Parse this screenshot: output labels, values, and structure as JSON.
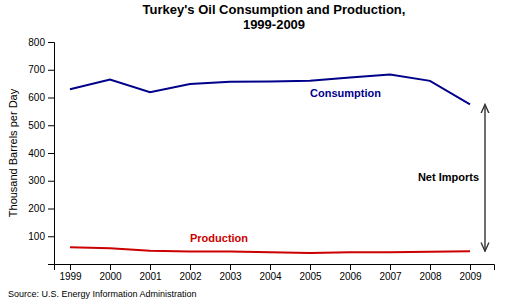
{
  "chart_data": {
    "type": "line",
    "title": "Turkey's Oil Consumption and Production,\n1999-2009",
    "y_label": "Thousand Barrels per Day",
    "x": [
      1999,
      2000,
      2001,
      2002,
      2003,
      2004,
      2005,
      2006,
      2007,
      2008,
      2009
    ],
    "series": [
      {
        "name": "Consumption",
        "color": "#00008B",
        "values": [
          630,
          665,
          619,
          649,
          657,
          658,
          660,
          672,
          683,
          660,
          575
        ]
      },
      {
        "name": "Production",
        "color": "#CC0000",
        "values": [
          60,
          57,
          48,
          45,
          45,
          42,
          40,
          42,
          42,
          44,
          46
        ]
      }
    ],
    "xlim": [
      1998.6,
      2009.6
    ],
    "xticks": [
      1999,
      2000,
      2001,
      2002,
      2003,
      2004,
      2005,
      2006,
      2007,
      2008,
      2009
    ],
    "ylim": [
      0,
      800
    ],
    "yticks": [
      100,
      200,
      300,
      400,
      500,
      600,
      700,
      800
    ],
    "grid": false,
    "annotations": [
      "Net Imports"
    ],
    "source": "Source: U.S. Energy Information Administration"
  }
}
